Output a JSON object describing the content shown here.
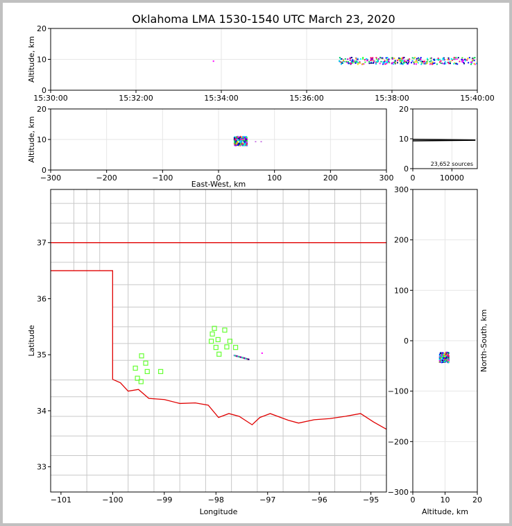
{
  "title": "Oklahoma LMA 1530-1540 UTC March 23, 2020",
  "colors": {
    "state_border": "#e00000",
    "county": "#c8c8c8",
    "stations": "#66ff33",
    "grid": "#e6e6e6"
  },
  "chart_data": [
    {
      "type": "scatter",
      "panel": "altitude-time",
      "ylabel": "Altitude, km",
      "ylim": [
        0,
        20
      ],
      "yticks": [
        0,
        10,
        20
      ],
      "xlim_minutes": [
        0,
        10
      ],
      "xticks_minutes": [
        0,
        2,
        4,
        6,
        8,
        10
      ],
      "xtick_labels": [
        "15:30:00",
        "15:32:00",
        "15:34:00",
        "15:36:00",
        "15:38:00",
        "15:40:00"
      ],
      "source_spans_minutes": [
        [
          6.75,
          10.0
        ]
      ],
      "typical_altitude_km": 9.5,
      "isolated_sources": [
        {
          "t": 3.8,
          "z": 9.4
        }
      ]
    },
    {
      "type": "scatter",
      "panel": "altitude-eastwest",
      "xlabel": "East-West, km",
      "ylabel": "Altitude, km",
      "xlim": [
        -300,
        300
      ],
      "ylim": [
        0,
        20
      ],
      "xticks": [
        -300,
        -200,
        -100,
        0,
        100,
        200,
        300
      ],
      "xtick_labels": [
        "−300",
        "−200",
        "−100",
        "0",
        "100",
        "200",
        "300"
      ],
      "yticks": [
        0,
        10,
        20
      ],
      "cluster": {
        "x": [
          27,
          50
        ],
        "z": [
          8,
          11
        ]
      }
    },
    {
      "type": "line",
      "panel": "source-count-histogram",
      "annotation": "23,652 sources",
      "xlim": [
        0,
        16500
      ],
      "ylim": [
        0,
        20
      ],
      "xticks": [
        0,
        10000
      ],
      "yticks": [
        0,
        10,
        20
      ],
      "series": [
        {
          "x": [
            0,
            16000
          ],
          "y": [
            9.3,
            9.5
          ]
        },
        {
          "x": [
            0,
            16000
          ],
          "y": [
            9.8,
            9.6
          ]
        }
      ]
    },
    {
      "type": "scatter",
      "panel": "plan-view-map",
      "xlabel": "Longitude",
      "ylabel": "Latitude",
      "xlim": [
        -101.2,
        -94.7
      ],
      "ylim": [
        32.55,
        37.95
      ],
      "xticks": [
        -101,
        -100,
        -99,
        -98,
        -97,
        -96,
        -95
      ],
      "xtick_labels": [
        "−101",
        "−100",
        "−99",
        "−98",
        "−97",
        "−96",
        "−95"
      ],
      "yticks": [
        33,
        34,
        35,
        36,
        37
      ],
      "yaxis_tick_labels": [
        "33",
        "34",
        "35",
        "36",
        "37"
      ],
      "stations": [
        {
          "lon": -98.03,
          "lat": 35.47
        },
        {
          "lon": -98.07,
          "lat": 35.37
        },
        {
          "lon": -97.83,
          "lat": 35.44
        },
        {
          "lon": -98.09,
          "lat": 35.24
        },
        {
          "lon": -97.96,
          "lat": 35.27
        },
        {
          "lon": -97.73,
          "lat": 35.24
        },
        {
          "lon": -97.79,
          "lat": 35.14
        },
        {
          "lon": -98.0,
          "lat": 35.13
        },
        {
          "lon": -97.62,
          "lat": 35.13
        },
        {
          "lon": -97.94,
          "lat": 35.01
        },
        {
          "lon": -99.44,
          "lat": 34.98
        },
        {
          "lon": -99.36,
          "lat": 34.85
        },
        {
          "lon": -99.56,
          "lat": 34.76
        },
        {
          "lon": -99.33,
          "lat": 34.7
        },
        {
          "lon": -99.07,
          "lat": 34.7
        },
        {
          "lon": -99.52,
          "lat": 34.58
        },
        {
          "lon": -99.45,
          "lat": 34.52
        }
      ],
      "source_trail": [
        {
          "lon": -97.66,
          "lat": 35.0
        },
        {
          "lon": -97.38,
          "lat": 34.93
        }
      ],
      "extra_source": {
        "lon": -97.12,
        "lat": 35.04
      }
    },
    {
      "type": "scatter",
      "panel": "altitude-northsouth",
      "xlabel": "Altitude, km",
      "ylabel": "North-South, km",
      "xlim": [
        0,
        20
      ],
      "ylim": [
        -300,
        300
      ],
      "xticks": [
        0,
        10,
        20
      ],
      "yticks": [
        -300,
        -200,
        -100,
        0,
        100,
        200,
        300
      ],
      "ytick_labels": [
        "−300",
        "−200",
        "−100",
        "0",
        "100",
        "200",
        "300"
      ],
      "cluster": {
        "z": [
          8,
          11
        ],
        "y": [
          -43,
          -23
        ]
      }
    }
  ]
}
